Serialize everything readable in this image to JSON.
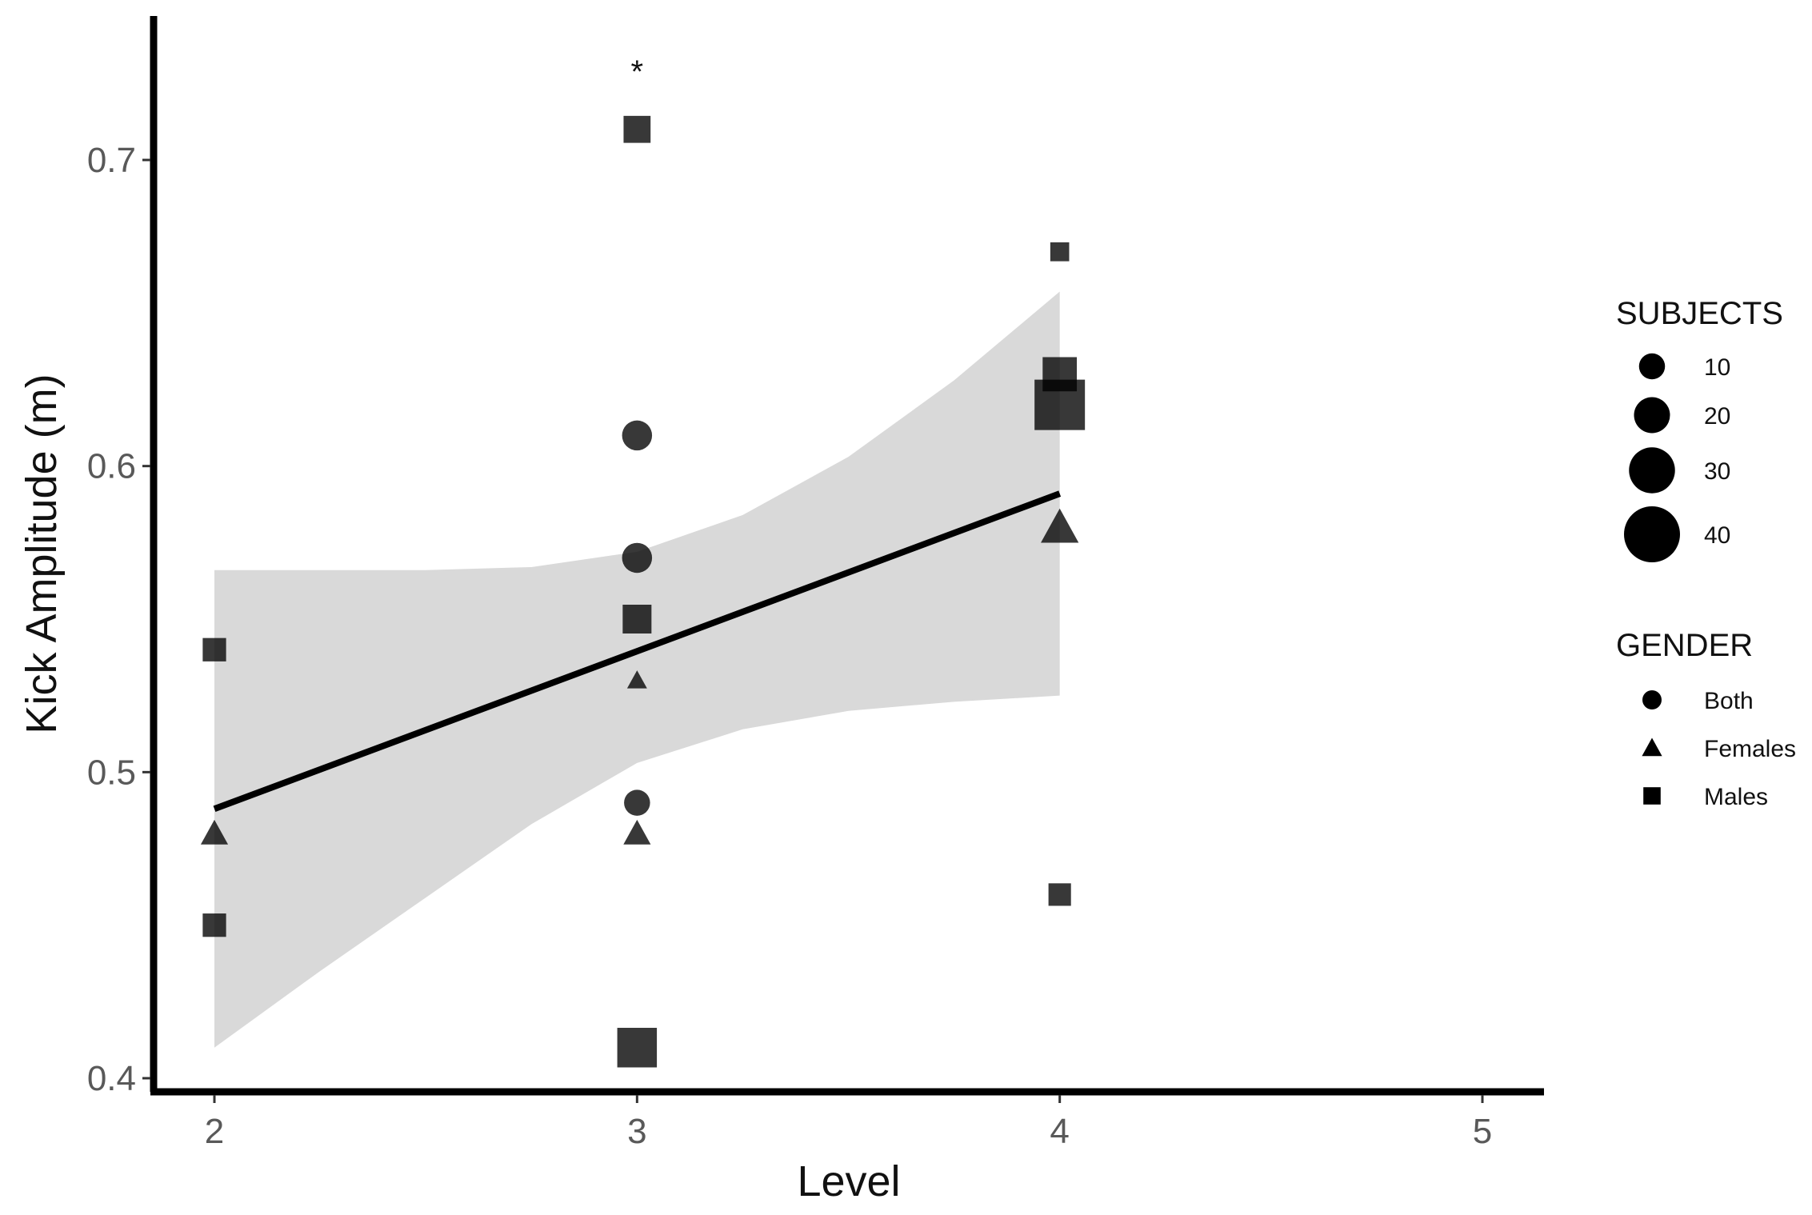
{
  "chart_data": {
    "type": "scatter",
    "title": "",
    "xlabel": "Level",
    "ylabel": "Kick Amplitude (m)",
    "xlim": [
      1.85,
      5.15
    ],
    "ylim": [
      0.395,
      0.74
    ],
    "x_ticks": [
      "2",
      "3",
      "4",
      "5"
    ],
    "y_ticks": [
      "0.4",
      "0.5",
      "0.6",
      "0.7"
    ],
    "grid": false,
    "points": [
      {
        "x": 2,
        "y": 0.54,
        "gender": "Males",
        "subjects": 10
      },
      {
        "x": 2,
        "y": 0.45,
        "gender": "Males",
        "subjects": 10
      },
      {
        "x": 2,
        "y": 0.48,
        "gender": "Females",
        "subjects": 10
      },
      {
        "x": 3,
        "y": 0.71,
        "gender": "Males",
        "subjects": 14
      },
      {
        "x": 3,
        "y": 0.61,
        "gender": "Both",
        "subjects": 14
      },
      {
        "x": 3,
        "y": 0.57,
        "gender": "Both",
        "subjects": 14
      },
      {
        "x": 3,
        "y": 0.55,
        "gender": "Males",
        "subjects": 16
      },
      {
        "x": 3,
        "y": 0.53,
        "gender": "Females",
        "subjects": 3
      },
      {
        "x": 3,
        "y": 0.49,
        "gender": "Both",
        "subjects": 10
      },
      {
        "x": 3,
        "y": 0.48,
        "gender": "Females",
        "subjects": 10
      },
      {
        "x": 3,
        "y": 0.41,
        "gender": "Males",
        "subjects": 28
      },
      {
        "x": 4,
        "y": 0.67,
        "gender": "Males",
        "subjects": 5
      },
      {
        "x": 4,
        "y": 0.63,
        "gender": "Males",
        "subjects": 22
      },
      {
        "x": 4,
        "y": 0.62,
        "gender": "Males",
        "subjects": 40
      },
      {
        "x": 4,
        "y": 0.58,
        "gender": "Females",
        "subjects": 20
      },
      {
        "x": 4,
        "y": 0.46,
        "gender": "Males",
        "subjects": 9
      }
    ],
    "trend": {
      "x": [
        2,
        4
      ],
      "y": [
        0.488,
        0.591
      ]
    },
    "confidence_band": {
      "x": [
        2.0,
        2.25,
        2.5,
        2.75,
        3.0,
        3.25,
        3.5,
        3.75,
        4.0
      ],
      "upper": [
        0.566,
        0.566,
        0.566,
        0.567,
        0.572,
        0.584,
        0.603,
        0.628,
        0.657
      ],
      "lower": [
        0.41,
        0.435,
        0.459,
        0.483,
        0.503,
        0.514,
        0.52,
        0.523,
        0.525
      ]
    },
    "annotation": {
      "x": 3,
      "y": 0.73,
      "text": "*"
    },
    "legend": {
      "placement": "right",
      "size_title": "SUBJECTS",
      "size_entries": [
        {
          "label": "10",
          "value": 10
        },
        {
          "label": "20",
          "value": 20
        },
        {
          "label": "30",
          "value": 30
        },
        {
          "label": "40",
          "value": 40
        }
      ],
      "shape_title": "GENDER",
      "shape_entries": [
        {
          "label": "Both",
          "shape": "circle"
        },
        {
          "label": "Females",
          "shape": "triangle"
        },
        {
          "label": "Males",
          "shape": "square"
        }
      ]
    },
    "colors": {
      "points": "#000000",
      "point_fill_opacity": 0.78,
      "band": "#d9d9d9",
      "line": "#000000",
      "axis": "#000000"
    }
  }
}
